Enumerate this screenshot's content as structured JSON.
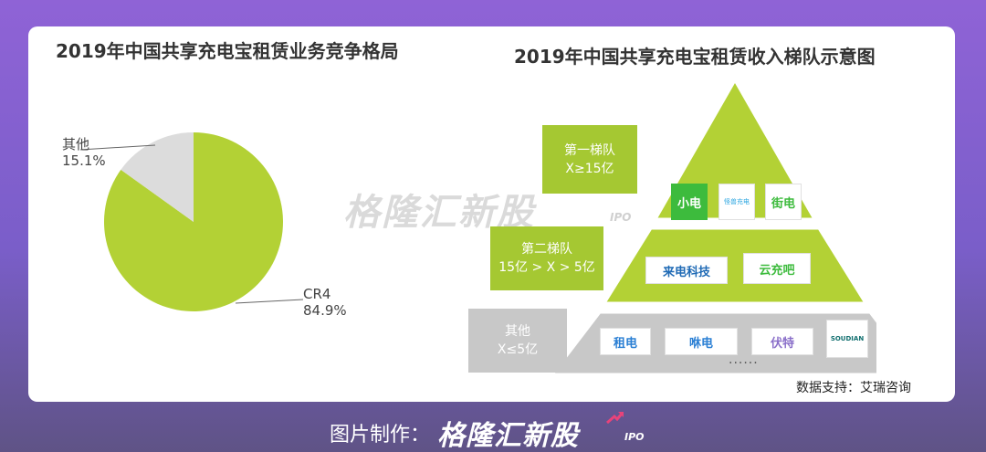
{
  "left_chart": {
    "title": "2019年中国共享充电宝租赁业务竞争格局",
    "chart_data": {
      "type": "pie",
      "title": "2019年中国共享充电宝租赁业务竞争格局",
      "slices": [
        {
          "label": "CR4",
          "value": 84.9,
          "value_label": "84.9%",
          "color": "#b3d135"
        },
        {
          "label": "其他",
          "value": 15.1,
          "value_label": "15.1%",
          "color": "#dcdcdc"
        }
      ]
    }
  },
  "right_chart": {
    "title": "2019年中国共享充电宝租赁收入梯队示意图",
    "tiers": [
      {
        "name": "第一梯队",
        "condition": "X≥15亿",
        "logos": [
          "小电",
          "怪兽充电",
          "街电"
        ]
      },
      {
        "name": "第二梯队",
        "condition": "15亿 > X > 5亿",
        "logos": [
          "来电科技",
          "云充吧"
        ]
      },
      {
        "name": "其他",
        "condition": "X≤5亿",
        "logos": [
          "租电",
          "咻电",
          "伏特",
          "SOUDIAN"
        ]
      }
    ],
    "more": "······",
    "source": "数据支持：艾瑞咨询"
  },
  "colors": {
    "accent_green": "#b3d135",
    "tier_box_green": "#a5c832",
    "other_gray": "#c8c8c8",
    "background_purple": "#8f63d6"
  },
  "watermark": {
    "text": "格隆汇新股",
    "suffix": "IPO"
  },
  "footer": {
    "label": "图片制作：",
    "brand": "格隆汇新股",
    "suffix": "IPO"
  }
}
